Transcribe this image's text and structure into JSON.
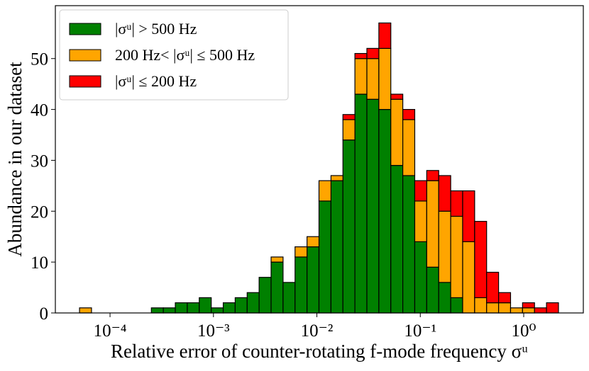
{
  "chart_data": {
    "type": "histogram",
    "stacked": true,
    "xscale": "log",
    "xlabel": "Relative error of counter-rotating f-mode frequency σᵘ",
    "ylabel": "Abundance in our dataset",
    "bins": [
      5.07e-05,
      6.62e-05,
      8.64e-05,
      0.0001128,
      0.0001473,
      0.0001922,
      0.000251,
      0.0003277,
      0.0004277,
      0.0005585,
      0.000729,
      0.000952,
      0.001243,
      0.001622,
      0.002118,
      0.002764,
      0.003609,
      0.004711,
      0.00615,
      0.00803,
      0.01048,
      0.01369,
      0.01786,
      0.02332,
      0.03045,
      0.03975,
      0.05188,
      0.06773,
      0.0884,
      0.1154,
      0.1507,
      0.1968,
      0.2569,
      0.3354,
      0.4378,
      0.5715,
      0.7461,
      0.974,
      1.272,
      1.661,
      2.168
    ],
    "series": [
      {
        "name": "|σᵘ| > 500 Hz",
        "color": "#008000",
        "values": [
          0,
          0,
          0,
          0,
          0,
          0,
          1,
          1,
          2,
          2,
          3,
          1,
          2,
          3,
          4,
          7,
          10,
          6,
          11,
          13,
          22,
          26,
          34,
          43,
          42,
          40,
          29,
          27,
          14,
          9,
          6,
          3,
          0,
          0,
          0,
          0,
          0,
          0,
          0,
          0
        ]
      },
      {
        "name": "200 Hz< |σᵘ| ≤ 500 Hz",
        "color": "#ffa500",
        "values": [
          1,
          0,
          0,
          0,
          0,
          0,
          0,
          0,
          0,
          0,
          0,
          0,
          0,
          0,
          0,
          0,
          1,
          0,
          2,
          2,
          4,
          1,
          4,
          7,
          8,
          12,
          13,
          11,
          8,
          17,
          14,
          16,
          14,
          3,
          2,
          2,
          1,
          1,
          0,
          0
        ]
      },
      {
        "name": "|σᵘ| ≤ 200 Hz",
        "color": "#ff0000",
        "values": [
          0,
          0,
          0,
          0,
          0,
          0,
          0,
          0,
          0,
          0,
          0,
          0,
          0,
          0,
          0,
          0,
          0,
          0,
          0,
          0,
          0,
          0,
          1,
          1,
          2,
          5,
          1,
          2,
          4,
          2,
          7,
          5,
          10,
          15,
          6,
          2,
          0,
          1,
          1,
          2
        ]
      }
    ],
    "xlim": [
      2.96e-05,
      3.77
    ],
    "ylim": [
      0,
      60.4
    ],
    "xticks": [
      {
        "value": 0.0001,
        "label": "10⁻⁴"
      },
      {
        "value": 0.001,
        "label": "10⁻³"
      },
      {
        "value": 0.01,
        "label": "10⁻²"
      },
      {
        "value": 0.1,
        "label": "10⁻¹"
      },
      {
        "value": 1,
        "label": "10⁰"
      }
    ],
    "yticks": [
      0,
      10,
      20,
      30,
      40,
      50
    ],
    "legend": "upper left"
  }
}
